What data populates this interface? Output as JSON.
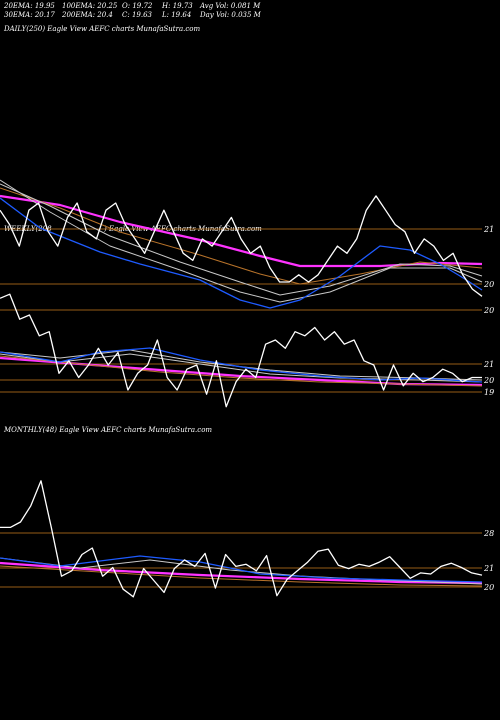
{
  "header": {
    "ema20": "20EMA: 19.95",
    "ema100": "100EMA: 20.25",
    "open": "O: 19.72",
    "high": "H: 19.73",
    "avgvol": "Avg Vol: 0.081 M",
    "ema30": "30EMA: 20.17",
    "ema200": "200EMA: 20.4",
    "close": "C: 19.63",
    "low": "L: 19.64",
    "dayvol": "Day Vol: 0.035 M"
  },
  "panels": {
    "daily": "DAILY(250) Eagle   View  AEFC charts MunafaSutra.com",
    "weekly_left": "WEEKLY(208",
    "weekly_right": ") Eagle   View  AEFC charts MunafaSutra.com",
    "monthly": "MONTHLY(48) Eagle   View  AEFC charts MunafaSutra.com"
  },
  "colors": {
    "background": "#000000",
    "price": "#ffffff",
    "ema_blue": "#1e5bff",
    "ema_magenta": "#ff33ff",
    "ema_gray": "#c8c8c8",
    "ema_brown": "#b8732a",
    "level_line": "#c87a1e"
  },
  "chart_data": [
    {
      "type": "line",
      "title": "DAILY(250)",
      "y_ticks": [
        "21",
        "20",
        "20"
      ],
      "series": [
        {
          "values": [
            20.9,
            20.7,
            20.4,
            20.9,
            21.0,
            20.6,
            20.4,
            20.8,
            21.0,
            20.6,
            20.5,
            20.9,
            21.0,
            20.7,
            20.5,
            20.3,
            20.6,
            20.9,
            20.6,
            20.3,
            20.2,
            20.5,
            20.4,
            20.6,
            20.8,
            20.5,
            20.3,
            20.4,
            20.1,
            19.9,
            19.9,
            20.0,
            19.9,
            20.0,
            20.2,
            20.4,
            20.3,
            20.5,
            20.9,
            21.1,
            20.9,
            20.7,
            20.6,
            20.3,
            20.5,
            20.4,
            20.2,
            20.3,
            20.0,
            19.8,
            19.7
          ]
        }
      ]
    },
    {
      "type": "line",
      "title": "WEEKLY(208)",
      "y_ticks": [
        "21",
        "20",
        "19"
      ],
      "series": [
        {
          "values": [
            21.8,
            21.9,
            21.3,
            21.4,
            20.9,
            21.0,
            20.0,
            20.3,
            19.9,
            20.2,
            20.6,
            20.2,
            20.5,
            19.6,
            20.0,
            20.2,
            20.8,
            19.9,
            19.6,
            20.1,
            20.2,
            19.5,
            20.3,
            19.2,
            19.8,
            20.1,
            19.9,
            20.7,
            20.8,
            20.6,
            21.0,
            20.9,
            21.1,
            20.8,
            21.0,
            20.7,
            20.8,
            20.3,
            20.2,
            19.6,
            20.2,
            19.7,
            20.0,
            19.8,
            19.9,
            20.1,
            20.0,
            19.8,
            19.9,
            19.9
          ]
        }
      ]
    },
    {
      "type": "line",
      "title": "MONTHLY(48)",
      "y_ticks": [
        "28",
        "21",
        "20"
      ],
      "series": [
        {
          "values": [
            24.0,
            24.0,
            24.5,
            26.0,
            28.3,
            24.0,
            19.5,
            20.0,
            21.5,
            22.1,
            19.5,
            20.3,
            18.3,
            17.6,
            20.2,
            19.1,
            18.0,
            20.2,
            21.0,
            20.4,
            21.6,
            18.4,
            21.5,
            20.4,
            20.6,
            20.0,
            21.4,
            17.7,
            19.2,
            20.0,
            20.8,
            21.8,
            22.0,
            20.5,
            20.2,
            20.6,
            20.4,
            20.8,
            21.3,
            20.3,
            19.3,
            19.8,
            19.7,
            20.4,
            20.7,
            20.3,
            19.8,
            19.6
          ]
        }
      ]
    }
  ]
}
